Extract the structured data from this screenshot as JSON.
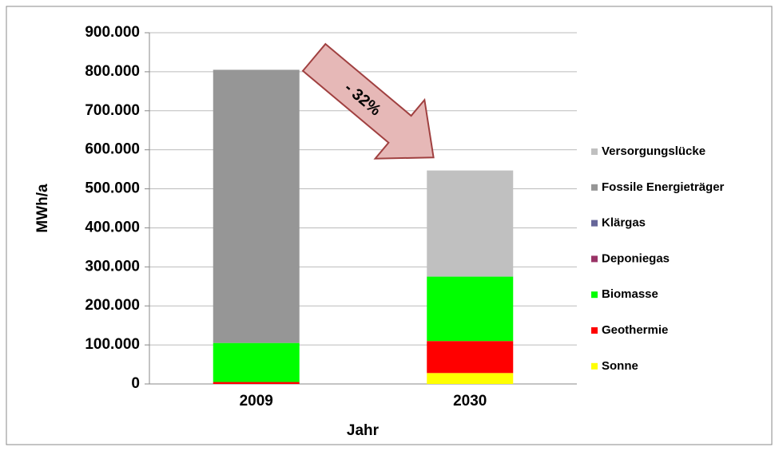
{
  "chart_data": {
    "type": "stacked_bar",
    "x_label": "Jahr",
    "y_label": "MWh/a",
    "annotation": "- 32%",
    "categories": [
      "2009",
      "2030"
    ],
    "series": [
      {
        "name": "Sonne",
        "color": "#ffff00",
        "values": [
          0,
          28000
        ]
      },
      {
        "name": "Geothermie",
        "color": "#ff0000",
        "values": [
          5000,
          82000
        ]
      },
      {
        "name": "Biomasse",
        "color": "#00ff00",
        "values": [
          100000,
          165000
        ]
      },
      {
        "name": "Deponiegas",
        "color": "#993366",
        "values": [
          0,
          0
        ]
      },
      {
        "name": "Klärgas",
        "color": "#666699",
        "values": [
          0,
          0
        ]
      },
      {
        "name": "Fossile Energieträger",
        "color": "#969696",
        "values": [
          700000,
          0
        ]
      },
      {
        "name": "Versorgungslücke",
        "color": "#c0c0c0",
        "values": [
          0,
          272000
        ]
      }
    ],
    "ylim": [
      0,
      900000
    ],
    "yticks": [
      {
        "value": 0,
        "label": "0"
      },
      {
        "value": 100000,
        "label": "100.000"
      },
      {
        "value": 200000,
        "label": "200.000"
      },
      {
        "value": 300000,
        "label": "300.000"
      },
      {
        "value": 400000,
        "label": "400.000"
      },
      {
        "value": 500000,
        "label": "500.000"
      },
      {
        "value": 600000,
        "label": "600.000"
      },
      {
        "value": 700000,
        "label": "700.000"
      },
      {
        "value": 800000,
        "label": "800.000"
      },
      {
        "value": 900000,
        "label": "900.000"
      }
    ],
    "grid": true,
    "legend": "right"
  }
}
